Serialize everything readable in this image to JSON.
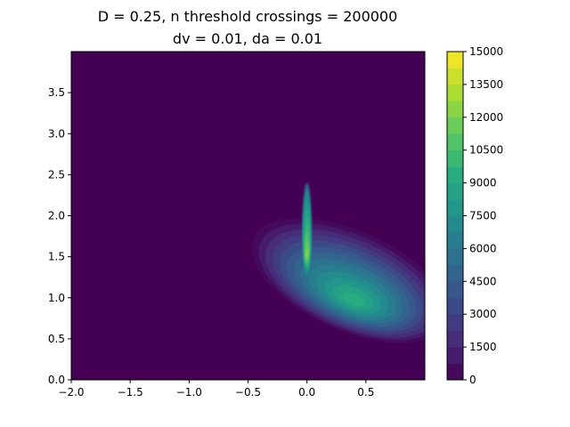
{
  "chart_data": {
    "type": "heatmap",
    "title_line1": "D = 0.25, n threshold crossings = 200000",
    "title_line2": "dv = 0.01, da = 0.01",
    "xlabel": "",
    "ylabel": "",
    "xlim": [
      -2.0,
      1.0
    ],
    "ylim": [
      0.0,
      4.0
    ],
    "x_ticks": [
      -2.0,
      -1.5,
      -1.0,
      -0.5,
      0.0,
      0.5
    ],
    "x_tick_labels": [
      "−2.0",
      "−1.5",
      "−1.0",
      "−0.5",
      "0.0",
      "0.5"
    ],
    "y_ticks": [
      0.0,
      0.5,
      1.0,
      1.5,
      2.0,
      2.5,
      3.0,
      3.5
    ],
    "y_tick_labels": [
      "0.0",
      "0.5",
      "1.0",
      "1.5",
      "2.0",
      "2.5",
      "3.0",
      "3.5"
    ],
    "colorbar": {
      "min": 0,
      "max": 15000,
      "levels": 20,
      "ticks": [
        0,
        1500,
        3000,
        4500,
        6000,
        7500,
        9000,
        10500,
        12000,
        13500,
        15000
      ],
      "tick_labels": [
        "0",
        "1500",
        "3000",
        "4500",
        "6000",
        "7500",
        "9000",
        "10500",
        "12000",
        "13500",
        "15000"
      ],
      "colormap": "viridis"
    },
    "features": {
      "main_peak": {
        "x": 0.4,
        "y": 0.95,
        "value": 9500
      },
      "ridge": {
        "x": 0.0,
        "y_from": 1.2,
        "y_to": 2.5,
        "peak_y": 1.5,
        "peak_value": 13500
      }
    }
  }
}
